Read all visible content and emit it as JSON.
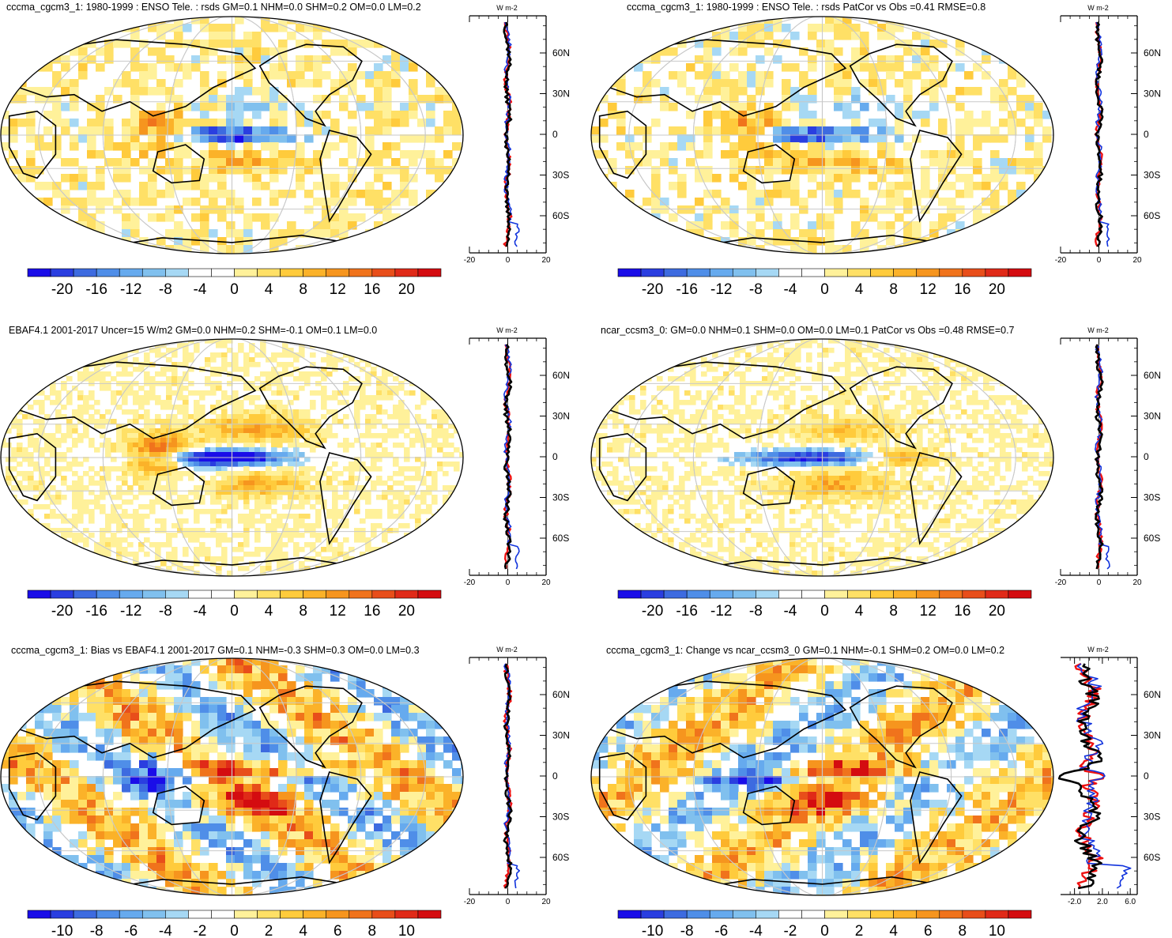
{
  "chart_data": [
    {
      "type": "heatmap",
      "title": "cccma_cgcm3_1: 1980-1999 : ENSO Tele. : rsds GM=0.1 NHM=0.0 SHM=0.2 OM=0.0 LM=0.2",
      "projection": "robinson",
      "colorbar_ticks": [
        "-20",
        "-16",
        "-12",
        "-8",
        "-4",
        "0",
        "4",
        "8",
        "12",
        "16",
        "20"
      ],
      "profile": {
        "units_label": "W m-2",
        "x_ticks": [
          "-20",
          "0",
          "20"
        ],
        "xlim": [
          -20,
          20
        ],
        "y_ticks": [
          "60N",
          "30N",
          "0",
          "30S",
          "60S"
        ]
      }
    },
    {
      "type": "heatmap",
      "title": "cccma_cgcm3_1: 1980-1999 : ENSO Tele. : rsds PatCor vs Obs =0.41 RMSE=0.8",
      "projection": "robinson",
      "colorbar_ticks": [
        "-20",
        "-16",
        "-12",
        "-8",
        "-4",
        "0",
        "4",
        "8",
        "12",
        "16",
        "20"
      ],
      "profile": {
        "units_label": "W m-2",
        "x_ticks": [
          "-20",
          "0",
          "20"
        ],
        "xlim": [
          -20,
          20
        ],
        "y_ticks": [
          "60N",
          "30N",
          "0",
          "30S",
          "60S"
        ]
      }
    },
    {
      "type": "heatmap",
      "title": "EBAF4.1 2001-2017 Uncer=15 W/m2 GM=0.0 NHM=0.2 SHM=-0.1 OM=0.1 LM=0.0",
      "projection": "robinson",
      "colorbar_ticks": [
        "-20",
        "-16",
        "-12",
        "-8",
        "-4",
        "0",
        "4",
        "8",
        "12",
        "16",
        "20"
      ],
      "profile": {
        "units_label": "W m-2",
        "x_ticks": [
          "-20",
          "0",
          "20"
        ],
        "xlim": [
          -20,
          20
        ],
        "y_ticks": [
          "60N",
          "30N",
          "0",
          "30S",
          "60S"
        ]
      }
    },
    {
      "type": "heatmap",
      "title": "ncar_ccsm3_0: GM=0.0 NHM=0.1 SHM=0.0 OM=0.0 LM=0.1 PatCor vs Obs =0.48 RMSE=0.7",
      "projection": "robinson",
      "colorbar_ticks": [
        "-20",
        "-16",
        "-12",
        "-8",
        "-4",
        "0",
        "4",
        "8",
        "12",
        "16",
        "20"
      ],
      "profile": {
        "units_label": "W m-2",
        "x_ticks": [
          "-20",
          "0",
          "20"
        ],
        "xlim": [
          -20,
          20
        ],
        "y_ticks": [
          "60N",
          "30N",
          "0",
          "30S",
          "60S"
        ]
      }
    },
    {
      "type": "heatmap",
      "title": "cccma_cgcm3_1: Bias vs EBAF4.1 2001-2017 GM=0.1 NHM=-0.3 SHM=0.3 OM=0.0 LM=0.3",
      "projection": "robinson",
      "colorbar_ticks": [
        "-10",
        "-8",
        "-6",
        "-4",
        "-2",
        "0",
        "2",
        "4",
        "6",
        "8",
        "10"
      ],
      "profile": {
        "units_label": "W m-2",
        "x_ticks": [
          "-20",
          "0",
          "20"
        ],
        "xlim": [
          -20,
          20
        ],
        "y_ticks": [
          "60N",
          "30N",
          "0",
          "30S",
          "60S"
        ]
      }
    },
    {
      "type": "heatmap",
      "title": "cccma_cgcm3_1: Change vs ncar_ccsm3_0 GM=0.1 NHM=-0.1 SHM=0.2 OM=0.0 LM=0.2",
      "projection": "robinson",
      "colorbar_ticks": [
        "-10",
        "-8",
        "-6",
        "-4",
        "-2",
        "0",
        "2",
        "4",
        "6",
        "8",
        "10"
      ],
      "profile": {
        "units_label": "W m-2",
        "x_ticks": [
          "-2.0",
          "2.0",
          "6.0"
        ],
        "xlim": [
          -4,
          7
        ],
        "y_ticks": [
          "60N",
          "30N",
          "0",
          "30S",
          "60S"
        ]
      }
    }
  ],
  "colors": {
    "palette": [
      "#1a0de8",
      "#2a3ee0",
      "#3d6be0",
      "#4f8ee8",
      "#66aaee",
      "#80c0ee",
      "#a6d8f4",
      "#ffffff",
      "#ffffff",
      "#fff19a",
      "#ffe066",
      "#ffcb3c",
      "#fbb229",
      "#f6951e",
      "#f0731c",
      "#e84e1a",
      "#e02a18",
      "#d40c10"
    ],
    "line_red": "#ee1111",
    "line_blue": "#1133dd",
    "line_black": "#000000",
    "grid": "#c8c8c8"
  }
}
